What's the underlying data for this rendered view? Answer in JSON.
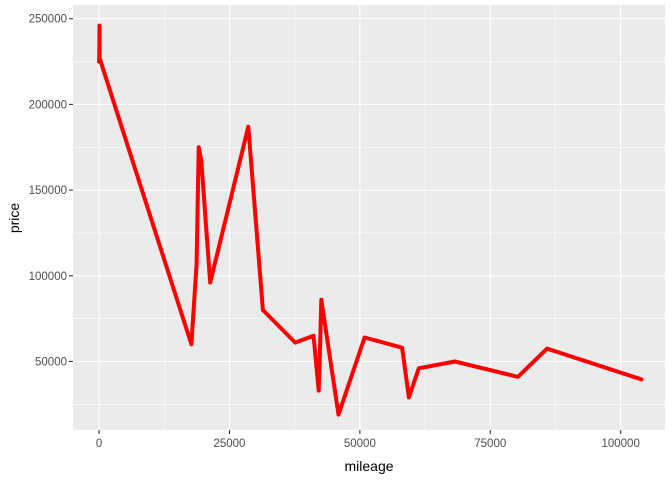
{
  "chart_data": {
    "type": "line",
    "title": "",
    "xlabel": "mileage",
    "ylabel": "price",
    "xlim": [
      -5000,
      108500
    ],
    "ylim": [
      10000,
      258000
    ],
    "x_ticks": [
      0,
      25000,
      50000,
      75000,
      100000
    ],
    "y_ticks": [
      50000,
      100000,
      150000,
      200000,
      250000
    ],
    "x_tick_labels": [
      "0",
      "25000",
      "50000",
      "75000",
      "100000"
    ],
    "y_tick_labels": [
      "50000",
      "100000",
      "150000",
      "200000",
      "250000"
    ],
    "grid": true,
    "line_color": "#ff0000",
    "panel_background": "#ebebeb",
    "grid_color": "#ffffff",
    "series": [
      {
        "x": [
          10,
          40,
          80,
          100,
          17700,
          18700,
          19100,
          19600,
          21300,
          28600,
          31400,
          37600,
          41100,
          42100,
          42300,
          42600,
          45900,
          50900,
          58100,
          59400,
          61300,
          68200,
          80300,
          85900,
          104000
        ],
        "y": [
          225000,
          230000,
          246000,
          227000,
          60000,
          107000,
          175000,
          167000,
          96000,
          187000,
          80000,
          61000,
          65000,
          33000,
          50000,
          86000,
          19000,
          64000,
          58000,
          29000,
          46000,
          50000,
          41000,
          57500,
          39500
        ]
      }
    ]
  }
}
